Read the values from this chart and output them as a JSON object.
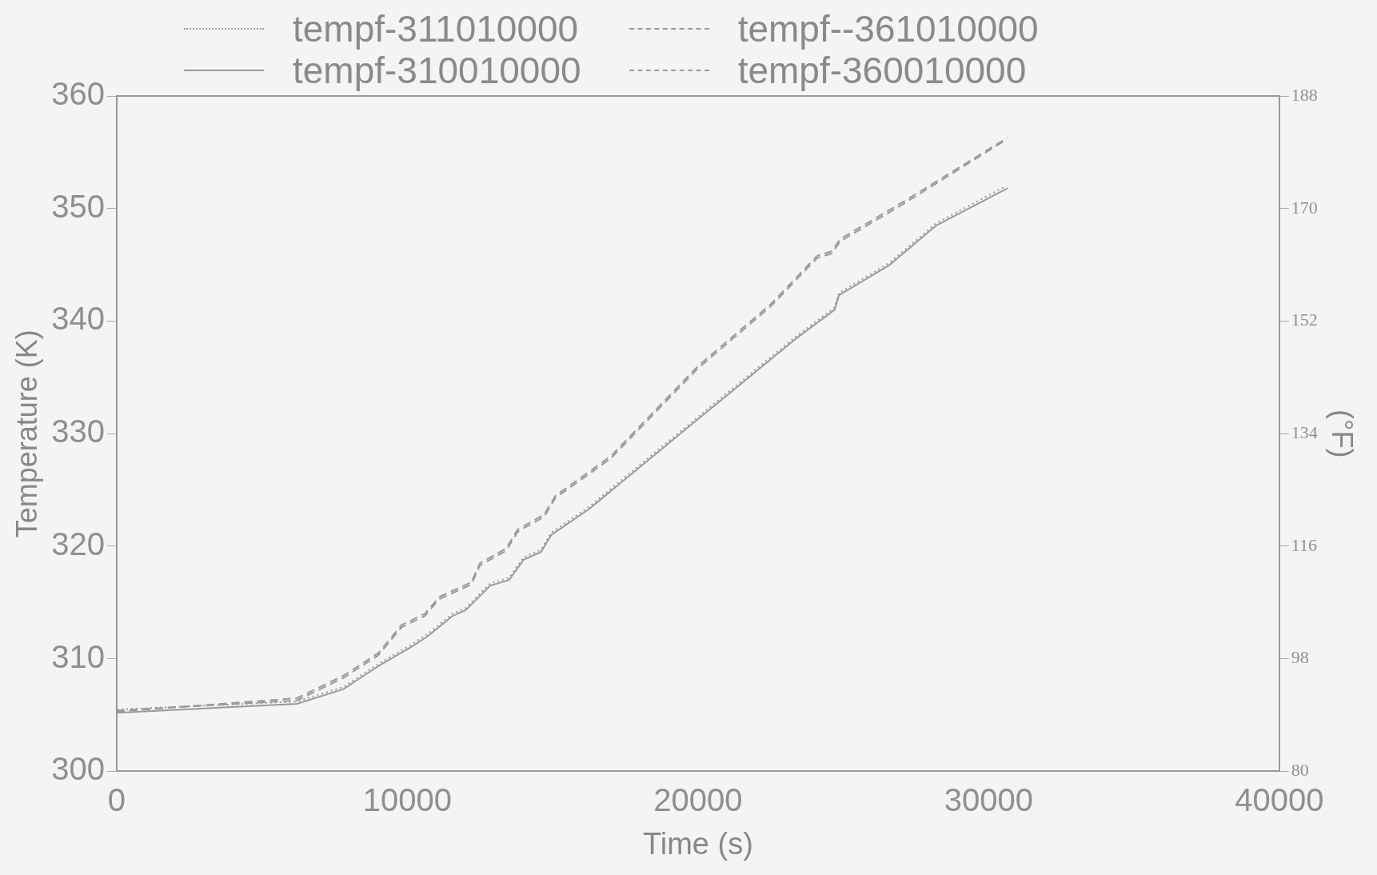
{
  "chart_data": {
    "type": "line",
    "xlabel": "Time (s)",
    "ylabel": "Temperature (K)",
    "y2label": "(°F)",
    "xlim": [
      0,
      40000
    ],
    "xticks": [
      0,
      10000,
      20000,
      30000,
      40000
    ],
    "ylim": [
      300,
      360
    ],
    "yticks": [
      300,
      310,
      320,
      330,
      340,
      350,
      360
    ],
    "y2lim": [
      80,
      188
    ],
    "y2ticks": [
      80,
      98,
      116,
      134,
      152,
      170,
      188
    ],
    "grid": false,
    "legend": "top",
    "marker": "none",
    "series": [
      {
        "name": "tempf-311010000",
        "color": "#9a9a9a",
        "line_style": "dotted",
        "x": [
          0,
          6200,
          7800,
          8500,
          9100,
          10100,
          10700,
          11550,
          12000,
          12850,
          13500,
          14000,
          14600,
          14950,
          16250,
          20100,
          23400,
          24700,
          24850,
          26600,
          28200,
          30600
        ],
        "values": [
          305.5,
          306.2,
          307.5,
          308.7,
          309.7,
          311.2,
          312.2,
          314,
          314.5,
          316.7,
          317.2,
          319,
          319.7,
          321.2,
          323.5,
          331.7,
          338.7,
          341.2,
          342.5,
          345.2,
          348.7,
          352
        ]
      },
      {
        "name": "tempf--361010000",
        "color": "#9a9a9a",
        "line_style": "dashed",
        "x": [
          0,
          6200,
          7800,
          9000,
          9800,
          10600,
          11100,
          12200,
          12500,
          13400,
          13800,
          14700,
          15100,
          17000,
          20000,
          22500,
          24100,
          24600,
          24900,
          27000,
          30650
        ],
        "values": [
          305.3,
          306.5,
          308.5,
          310.5,
          313,
          314,
          315.5,
          316.8,
          318.5,
          319.8,
          321.5,
          322.8,
          324.5,
          328,
          336,
          341.5,
          345.8,
          346.2,
          347.3,
          350.5,
          356.3
        ]
      },
      {
        "name": "tempf-310010000",
        "color": "#9a9a9a",
        "line_style": "solid",
        "x": [
          0,
          6200,
          7800,
          8500,
          9100,
          10100,
          10700,
          11550,
          12000,
          12850,
          13500,
          14000,
          14600,
          14950,
          16250,
          20100,
          23400,
          24700,
          24850,
          26600,
          28200,
          30650
        ],
        "values": [
          305.2,
          306,
          307.3,
          308.5,
          309.5,
          311,
          312,
          313.8,
          314.3,
          316.5,
          317,
          318.8,
          319.5,
          321,
          323.3,
          331.5,
          338.5,
          341,
          342.3,
          345,
          348.5,
          351.8
        ]
      },
      {
        "name": "tempf-360010000",
        "color": "#9a9a9a",
        "line_style": "dashed",
        "x": [
          0,
          6200,
          7800,
          9000,
          9800,
          10600,
          11100,
          12200,
          12500,
          13400,
          13800,
          14700,
          15100,
          17000,
          20000,
          22500,
          24100,
          24600,
          24900,
          27000,
          30600
        ],
        "values": [
          305.4,
          306.3,
          308.3,
          310.3,
          312.8,
          313.8,
          315.3,
          316.6,
          318.3,
          319.6,
          321.3,
          322.6,
          324.3,
          327.8,
          335.8,
          341.3,
          345.6,
          346,
          347.1,
          350.3,
          356.1
        ]
      }
    ]
  }
}
